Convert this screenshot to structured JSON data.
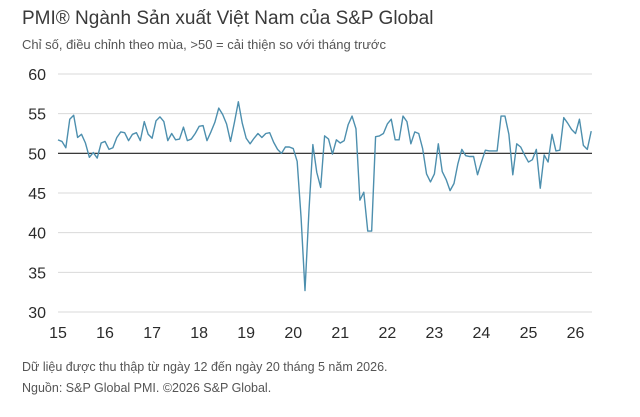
{
  "title": "PMI® Ngành Sản xuất Việt Nam của S&P Global",
  "subtitle": "Chỉ số, điều chỉnh theo mùa, >50 = cải thiện so với tháng trước",
  "footnotes": [
    "Dữ liệu được thu thập từ ngày 12 đến ngày 20 tháng 5 năm 2026.",
    "Nguồn: S&P Global PMI. ©2026 S&P Global."
  ],
  "colors": {
    "line": "#4d8fae",
    "grid": "#d9d9d9",
    "reference": "#222222"
  },
  "chart_data": {
    "type": "line",
    "title": "PMI® Ngành Sản xuất Việt Nam của S&P Global",
    "subtitle": "Chỉ số, điều chỉnh theo mùa, >50 = cải thiện so với tháng trước",
    "ylim": [
      30,
      60
    ],
    "yticks": [
      30,
      35,
      40,
      45,
      50,
      55,
      60
    ],
    "xlim": [
      2015.0,
      2026.35
    ],
    "xticks": [
      2015,
      2016,
      2017,
      2018,
      2019,
      2020,
      2021,
      2022,
      2023,
      2024,
      2025,
      2026
    ],
    "xtick_labels": [
      "15",
      "16",
      "17",
      "18",
      "19",
      "20",
      "21",
      "22",
      "23",
      "24",
      "25",
      "26"
    ],
    "reference_line": 50,
    "grid": true,
    "start": {
      "year": 2015,
      "month": 1
    },
    "frequency": "monthly",
    "values": [
      51.7,
      51.5,
      50.7,
      54.3,
      54.8,
      52.0,
      52.4,
      51.3,
      49.5,
      50.1,
      49.4,
      51.3,
      51.5,
      50.5,
      50.7,
      52.0,
      52.7,
      52.6,
      51.6,
      52.4,
      52.6,
      51.6,
      54.0,
      52.4,
      51.9,
      54.1,
      54.6,
      54.0,
      51.6,
      52.5,
      51.7,
      51.8,
      53.3,
      51.6,
      51.8,
      52.5,
      53.4,
      53.5,
      51.6,
      52.7,
      53.9,
      55.7,
      54.9,
      53.7,
      51.5,
      53.9,
      56.5,
      53.8,
      51.9,
      51.2,
      51.9,
      52.5,
      52.0,
      52.5,
      52.6,
      51.4,
      50.5,
      50.0,
      50.8,
      50.8,
      50.6,
      49.0,
      41.9,
      32.7,
      42.7,
      51.1,
      47.6,
      45.7,
      52.2,
      51.8,
      49.9,
      51.7,
      51.3,
      51.6,
      53.6,
      54.7,
      53.1,
      44.1,
      45.1,
      40.2,
      40.2,
      52.1,
      52.2,
      52.5,
      53.7,
      54.3,
      51.7,
      51.7,
      54.7,
      54.0,
      51.2,
      52.7,
      52.5,
      50.6,
      47.4,
      46.4,
      47.4,
      51.2,
      47.7,
      46.7,
      45.3,
      46.2,
      48.7,
      50.5,
      49.7,
      49.6,
      49.6,
      47.3,
      48.9,
      50.4,
      50.3,
      50.3,
      50.3,
      54.7,
      54.7,
      52.4,
      47.3,
      51.2,
      50.8,
      49.8,
      48.9,
      49.2,
      50.5,
      45.6,
      49.8,
      48.9,
      52.4,
      50.3,
      50.4,
      54.5,
      53.8,
      53.0,
      52.5,
      54.3,
      51.0,
      50.5,
      52.8
    ]
  }
}
